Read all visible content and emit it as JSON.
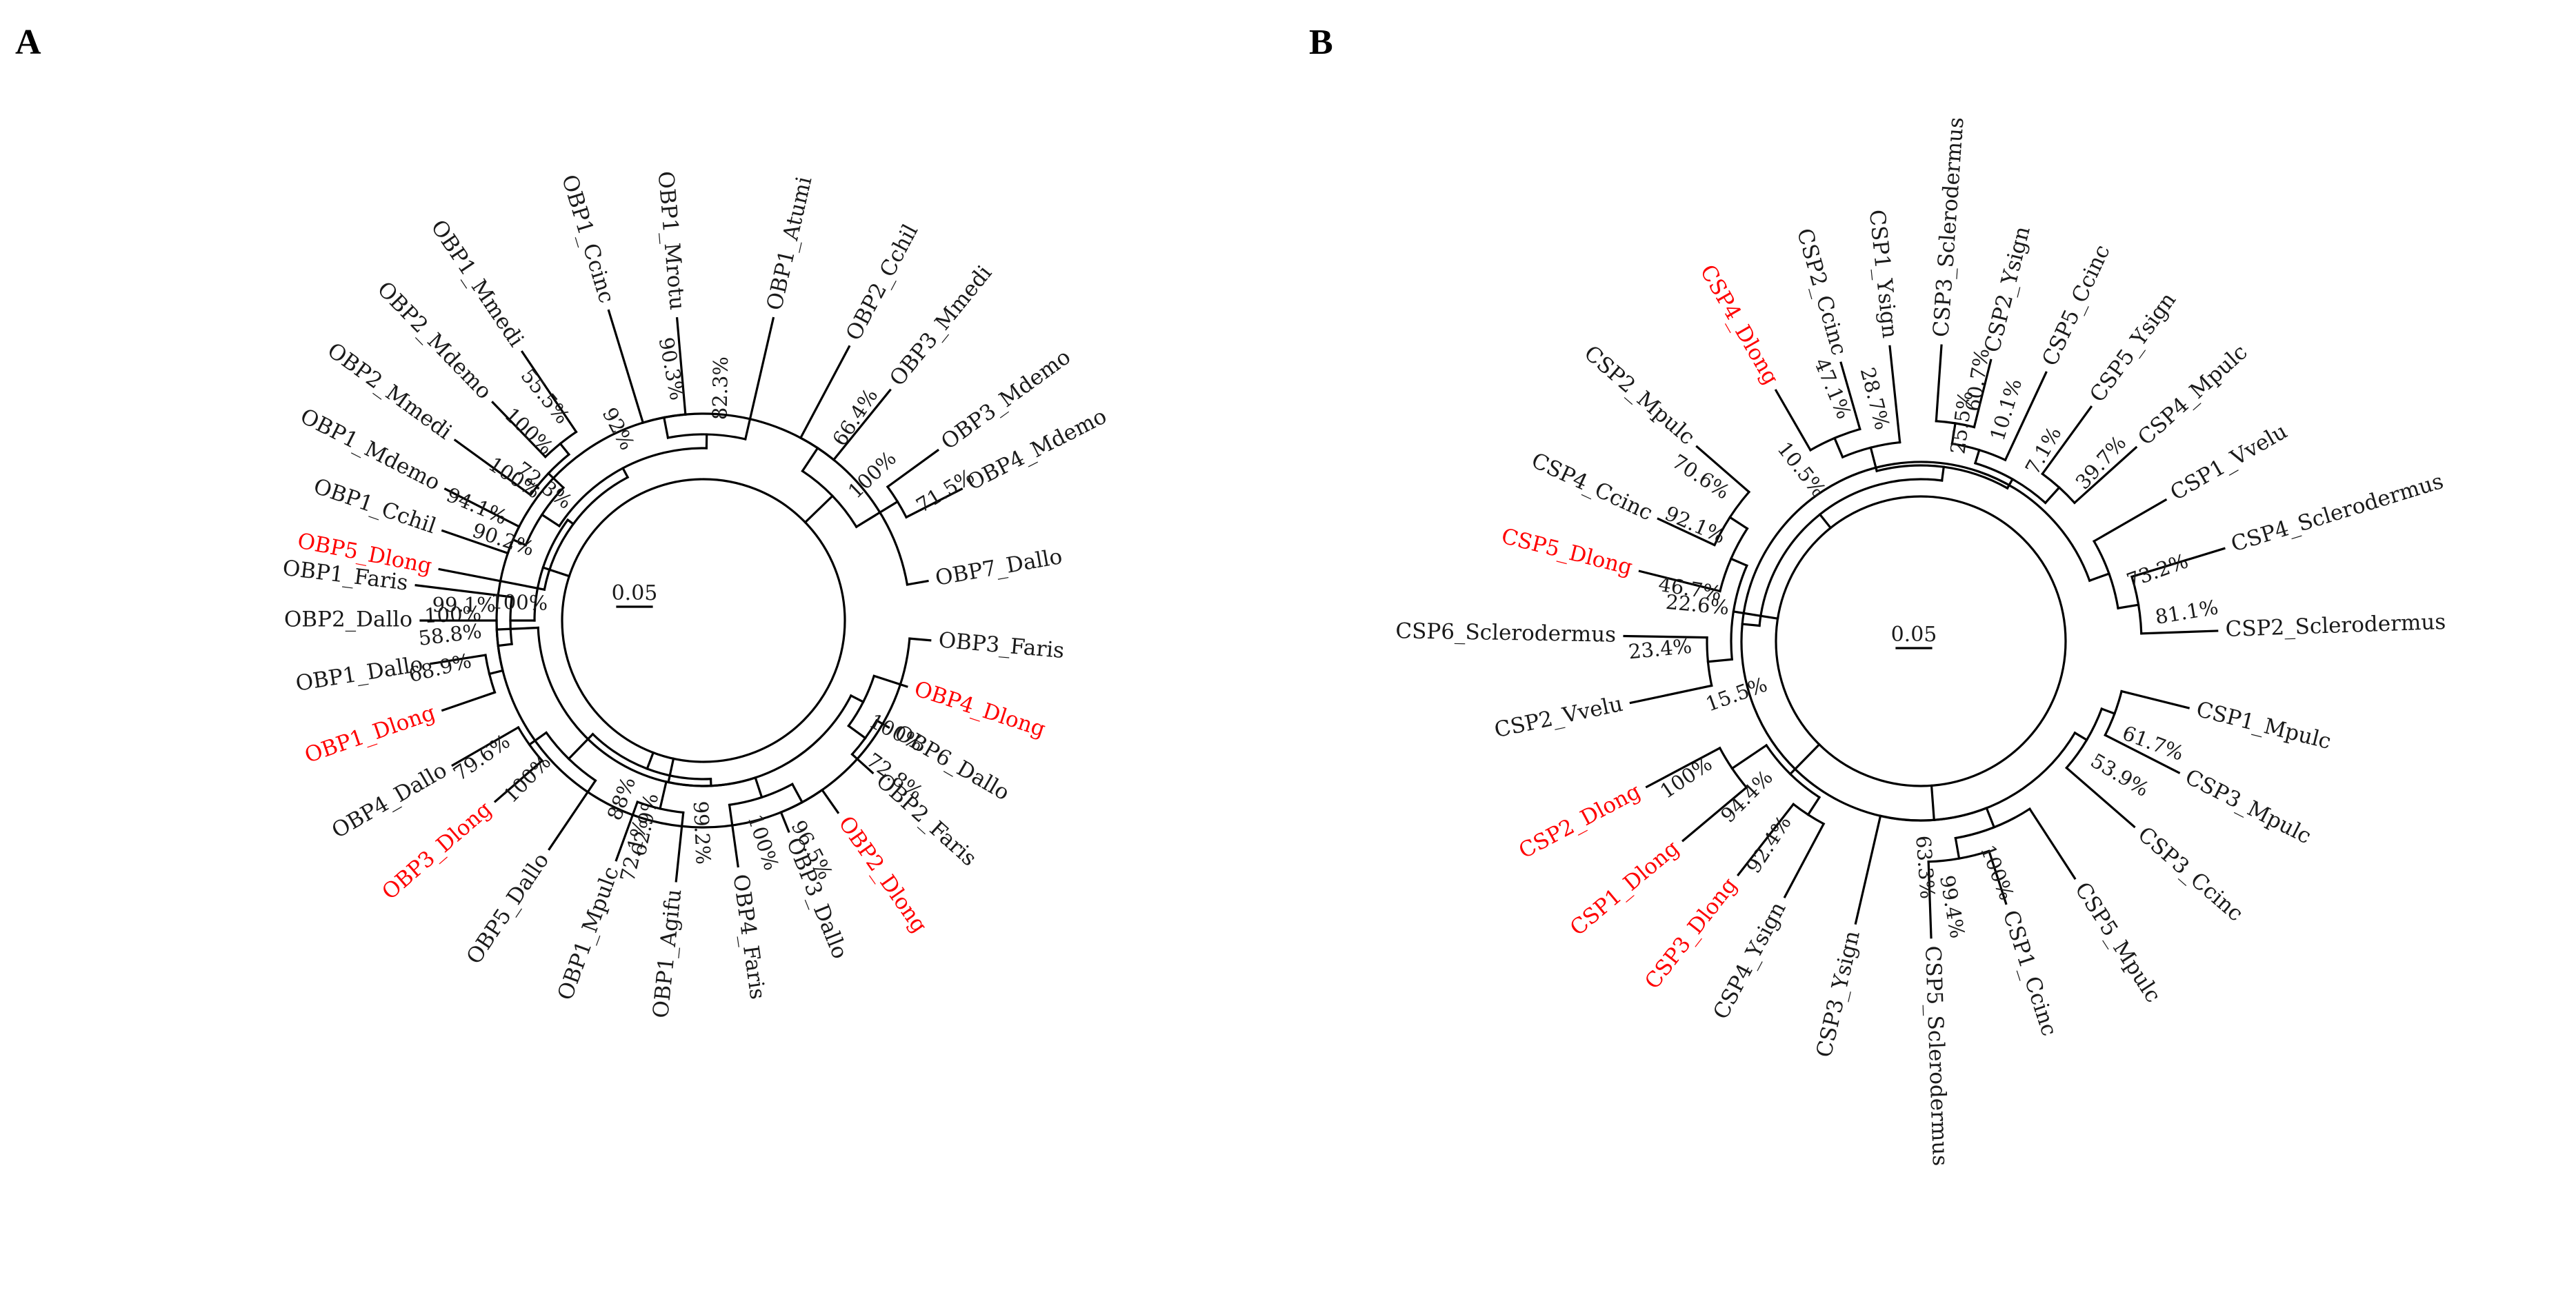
{
  "figure": {
    "highlight_color": "#ff0000",
    "text_color": "#1a1a1a",
    "line_color": "#000000"
  },
  "panels": [
    {
      "id": "panel-a",
      "letter": "A",
      "scale_label": "0.05",
      "leaves": [
        {
          "label": "OBP5_Dlong",
          "highlight": true
        },
        {
          "label": "OBP1_Cchil",
          "highlight": false
        },
        {
          "label": "OBP1_Mdemo",
          "highlight": false
        },
        {
          "label": "OBP2_Mmedi",
          "highlight": false
        },
        {
          "label": "OBP2_Mdemo",
          "highlight": false
        },
        {
          "label": "OBP1_Mmedi",
          "highlight": false
        },
        {
          "label": "OBP1_Ccinc",
          "highlight": false
        },
        {
          "label": "OBP1_Mrotu",
          "highlight": false
        },
        {
          "label": "OBP1_Atumi",
          "highlight": false
        },
        {
          "label": "OBP2_Cchil",
          "highlight": false
        },
        {
          "label": "OBP3_Mmedi",
          "highlight": false
        },
        {
          "label": "OBP3_Mdemo",
          "highlight": false
        },
        {
          "label": "OBP4_Mdemo",
          "highlight": false
        },
        {
          "label": "OBP7_Dallo",
          "highlight": false
        },
        {
          "label": "OBP3_Faris",
          "highlight": false
        },
        {
          "label": "OBP4_Dlong",
          "highlight": true
        },
        {
          "label": "OBP6_Dallo",
          "highlight": false
        },
        {
          "label": "OBP2_Faris",
          "highlight": false
        },
        {
          "label": "OBP2_Dlong",
          "highlight": true
        },
        {
          "label": "OBP3_Dallo",
          "highlight": false
        },
        {
          "label": "OBP4_Faris",
          "highlight": false
        },
        {
          "label": "OBP1_Agifu",
          "highlight": false
        },
        {
          "label": "OBP1_Mpulc",
          "highlight": false
        },
        {
          "label": "OBP5_Dallo",
          "highlight": false
        },
        {
          "label": "OBP3_Dlong",
          "highlight": true
        },
        {
          "label": "OBP4_Dallo",
          "highlight": false
        },
        {
          "label": "OBP1_Dlong",
          "highlight": true
        },
        {
          "label": "OBP1_Dallo",
          "highlight": false
        },
        {
          "label": "OBP2_Dallo",
          "highlight": false
        },
        {
          "label": "OBP1_Faris",
          "highlight": false
        }
      ],
      "supports": [
        "72.3%",
        "94.1%",
        "55.5%",
        "100%",
        "100%",
        "92%",
        "90.3%",
        "82.3%",
        "66.4%",
        "71.5%",
        "100%",
        "100%",
        "100%",
        "62.9%",
        "100%",
        "72.8%",
        "96.5%",
        "100%",
        "72.1%",
        "99.2%",
        "88%",
        "79.6%",
        "100%",
        "68.9%",
        "58.8%",
        "99.1%",
        "90.2%"
      ]
    },
    {
      "id": "panel-b",
      "letter": "B",
      "scale_label": "0.05",
      "leaves": [
        {
          "label": "CSP5_Dlong",
          "highlight": true
        },
        {
          "label": "CSP4_Ccinc",
          "highlight": false
        },
        {
          "label": "CSP2_Mpulc",
          "highlight": false
        },
        {
          "label": "CSP4_Dlong",
          "highlight": true
        },
        {
          "label": "CSP2_Ccinc",
          "highlight": false
        },
        {
          "label": "CSP1_Ysign",
          "highlight": false
        },
        {
          "label": "CSP3_Sclerodermus",
          "highlight": false
        },
        {
          "label": "CSP2_Ysign",
          "highlight": false
        },
        {
          "label": "CSP5_Ccinc",
          "highlight": false
        },
        {
          "label": "CSP5_Ysign",
          "highlight": false
        },
        {
          "label": "CSP4_Mpulc",
          "highlight": false
        },
        {
          "label": "CSP1_Vvelu",
          "highlight": false
        },
        {
          "label": "CSP4_Sclerodermus",
          "highlight": false
        },
        {
          "label": "CSP2_Sclerodermus",
          "highlight": false
        },
        {
          "label": "CSP1_Mpulc",
          "highlight": false
        },
        {
          "label": "CSP3_Mpulc",
          "highlight": false
        },
        {
          "label": "CSP3_Ccinc",
          "highlight": false
        },
        {
          "label": "CSP5_Mpulc",
          "highlight": false
        },
        {
          "label": "CSP1_Ccinc",
          "highlight": false
        },
        {
          "label": "CSP5_Sclerodermus",
          "highlight": false
        },
        {
          "label": "CSP3_Ysign",
          "highlight": false
        },
        {
          "label": "CSP4_Ysign",
          "highlight": false
        },
        {
          "label": "CSP3_Dlong",
          "highlight": true
        },
        {
          "label": "CSP1_Dlong",
          "highlight": true
        },
        {
          "label": "CSP2_Dlong",
          "highlight": true
        },
        {
          "label": "CSP2_Vvelu",
          "highlight": false
        },
        {
          "label": "CSP6_Sclerodermus",
          "highlight": false
        }
      ],
      "supports": [
        "92.1%",
        "70.6%",
        "47.1%",
        "28.7%",
        "15.5%",
        "25.5%",
        "60.7%",
        "10.1%",
        "39.7%",
        "7.1%",
        "10.5%",
        "73.2%",
        "81.1%",
        "22.6%",
        "53.9%",
        "61.7%",
        "100%",
        "99.4%",
        "63.3%",
        "92.4%",
        "100%",
        "94.4%",
        "23.4%",
        "46.7%"
      ]
    }
  ]
}
